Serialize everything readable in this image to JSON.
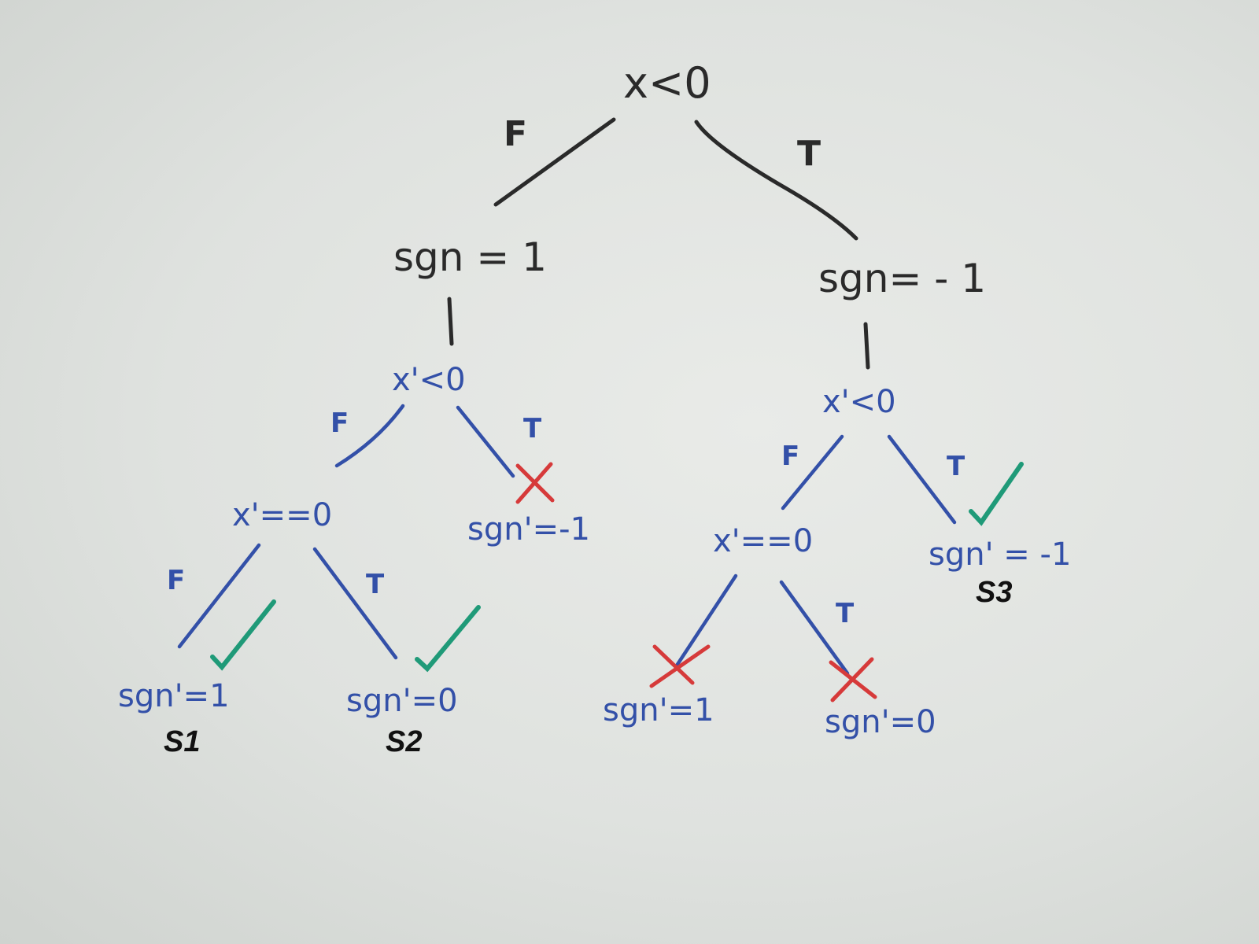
{
  "colors": {
    "black_ink": "#2a2a2a",
    "blue_ink": "#3350a8",
    "check_green": "#1f9a78",
    "cross_red": "#d63a3a"
  },
  "nodes": {
    "root": "x<0",
    "left_assign": "sgn = 1",
    "right_assign": "sgn= - 1",
    "left_test": "x'<0",
    "right_test": "x'<0",
    "left_eq_test": "x'==0",
    "right_eq_test": "x'==0",
    "left_true_leaf": "sgn'=-1",
    "leaf_s1": "sgn'=1",
    "leaf_s2": "sgn'=0",
    "right_false_false_leaf": "sgn'=1",
    "right_false_true_leaf": "sgn'=0",
    "leaf_s3": "sgn' = -1"
  },
  "edges": {
    "root_false": "F",
    "root_true": "T",
    "left_test_false": "F",
    "left_test_true": "T",
    "left_eq_false": "F",
    "left_eq_true": "T",
    "right_test_false": "F",
    "right_test_true": "T",
    "right_eq_true": "T"
  },
  "marks": {
    "leaf_s1": "check-icon",
    "leaf_s2": "check-icon",
    "leaf_s3": "check-icon",
    "left_true_leaf": "cross-icon",
    "right_false_false_leaf": "cross-icon",
    "right_false_true_leaf": "cross-icon"
  },
  "solutions": {
    "s1": "S1",
    "s2": "S2",
    "s3": "S3"
  }
}
